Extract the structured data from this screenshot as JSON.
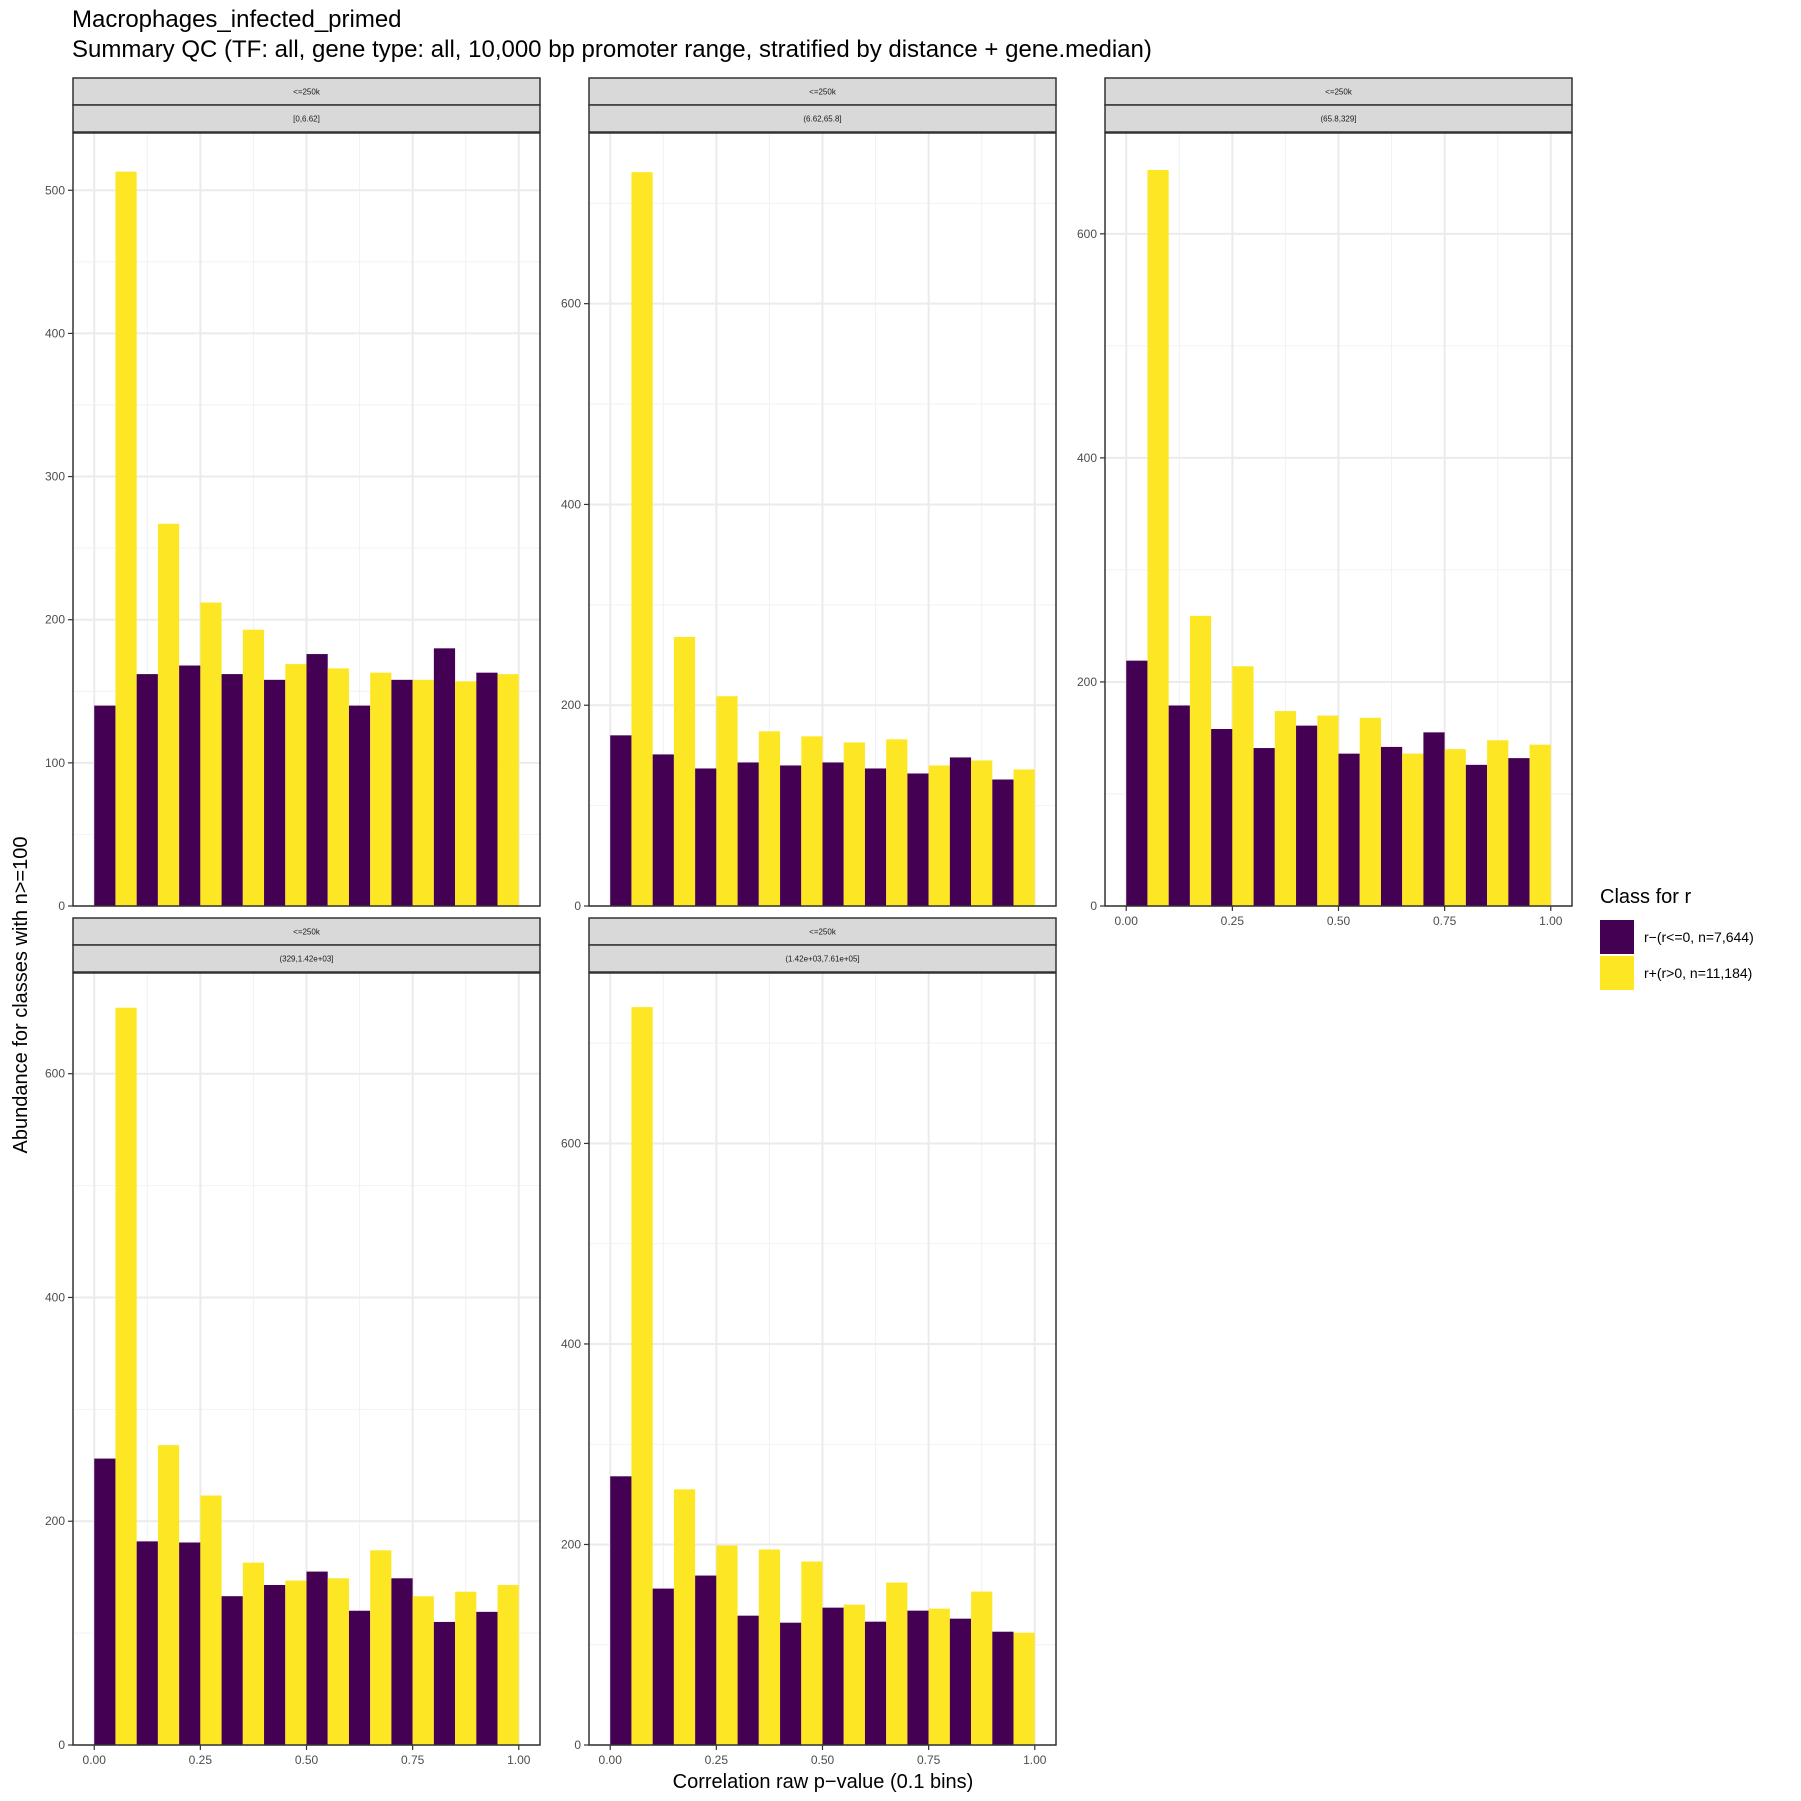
{
  "title": "Macrophages_infected_primed",
  "subtitle": "Summary QC (TF: all, gene type: all, 10,000 bp promoter range, stratified by distance + gene.median)",
  "legend": {
    "title": "Class for r",
    "items": [
      {
        "label": "r−(r<=0, n=7,644)",
        "color": "#440154"
      },
      {
        "label": "r+(r>0, n=11,184)",
        "color": "#FDE725"
      }
    ]
  },
  "chart_data": {
    "type": "bar",
    "xlabel": "Correlation raw p−value (0.1 bins)",
    "ylabel": "Abundance for classes with n>=100",
    "x_ticks": [
      "0.00",
      "0.25",
      "0.50",
      "0.75",
      "1.00"
    ],
    "bins": [
      0.05,
      0.15,
      0.25,
      0.35,
      0.45,
      0.55,
      0.65,
      0.75,
      0.85,
      0.95
    ],
    "series_names": [
      "r−(r<=0, n=7,644)",
      "r+(r>0, n=11,184)"
    ],
    "colors": [
      "#440154",
      "#FDE725"
    ],
    "grid": true,
    "legend_position": "right",
    "panels": [
      {
        "strip_top": "<=250k",
        "strip_bottom": "[0,6.62]",
        "ylim": [
          0,
          540
        ],
        "y_ticks": [
          0,
          100,
          200,
          300,
          400,
          500
        ],
        "neg": [
          140,
          162,
          168,
          162,
          158,
          176,
          140,
          158,
          180,
          163
        ],
        "pos": [
          513,
          267,
          212,
          193,
          169,
          166,
          163,
          158,
          157,
          162
        ]
      },
      {
        "strip_top": "<=250k",
        "strip_bottom": "(6.62,65.8]",
        "ylim": [
          0,
          770
        ],
        "y_ticks": [
          0,
          200,
          400,
          600
        ],
        "neg": [
          170,
          151,
          137,
          143,
          140,
          143,
          137,
          132,
          148,
          126
        ],
        "pos": [
          731,
          268,
          209,
          174,
          169,
          163,
          166,
          140,
          145,
          136
        ]
      },
      {
        "strip_top": "<=250k",
        "strip_bottom": "(65.8,329]",
        "ylim": [
          0,
          690
        ],
        "y_ticks": [
          0,
          200,
          400,
          600
        ],
        "neg": [
          219,
          179,
          158,
          141,
          161,
          136,
          142,
          155,
          126,
          132
        ],
        "pos": [
          657,
          259,
          214,
          174,
          170,
          168,
          136,
          140,
          148,
          144
        ]
      },
      {
        "strip_top": "<=250k",
        "strip_bottom": "(329,1.42e+03]",
        "ylim": [
          0,
          690
        ],
        "y_ticks": [
          0,
          200,
          400,
          600
        ],
        "neg": [
          256,
          182,
          181,
          133,
          143,
          155,
          120,
          149,
          110,
          119
        ],
        "pos": [
          659,
          268,
          223,
          163,
          147,
          149,
          174,
          133,
          137,
          143
        ]
      },
      {
        "strip_top": "<=250k",
        "strip_bottom": "(1.42e+03,7.61e+05]",
        "ylim": [
          0,
          770
        ],
        "y_ticks": [
          0,
          200,
          400,
          600
        ],
        "neg": [
          268,
          156,
          169,
          129,
          122,
          137,
          123,
          134,
          126,
          113
        ],
        "pos": [
          736,
          255,
          199,
          195,
          183,
          140,
          162,
          136,
          153,
          112
        ]
      }
    ]
  }
}
